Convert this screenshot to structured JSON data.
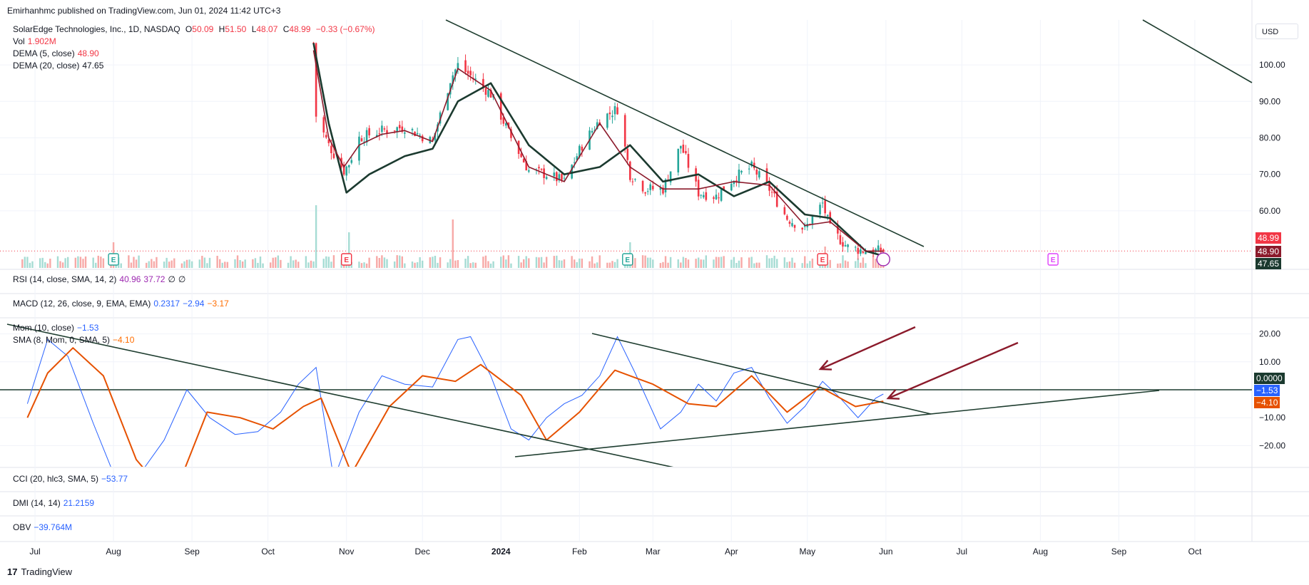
{
  "header": {
    "published": "Emirhanhmc published on TradingView.com, Jun 01, 2024 11:42 UTC+3",
    "symbol": "SolarEdge Technologies, Inc., 1D, NASDAQ",
    "ohlc": {
      "o_label": "O",
      "o": "50.09",
      "h_label": "H",
      "h": "51.50",
      "l_label": "L",
      "l": "48.07",
      "c_label": "C",
      "c": "48.99",
      "change": "−0.33 (−0.67%)"
    },
    "vol_label": "Vol",
    "vol_value": "1.902M",
    "dema5_label": "DEMA (5, close)",
    "dema5_value": "48.90",
    "dema20_label": "DEMA (20, close)",
    "dema20_value": "47.65"
  },
  "currency": "USD",
  "indicators": {
    "rsi_label": "RSI (14, close, SMA, 14, 2)",
    "rsi_v1": "40.96",
    "rsi_v2": "37.72",
    "rsi_v3": "∅",
    "rsi_v4": "∅",
    "macd_label": "MACD (12, 26, close, 9, EMA, EMA)",
    "macd_v1": "0.2317",
    "macd_v2": "−2.94",
    "macd_v3": "−3.17",
    "mom_label": "Mom (10, close)",
    "mom_value": "−1.53",
    "sma_label": "SMA (8, Mom, 0, SMA, 5)",
    "sma_value": "−4.10",
    "cci_label": "CCI (20, hlc3, SMA, 5)",
    "cci_value": "−53.77",
    "dmi_label": "DMI (14, 14)",
    "dmi_value": "21.2159",
    "obv_label": "OBV",
    "obv_value": "−39.764M"
  },
  "price_tags": {
    "close": "48.99",
    "dema5": "48.90",
    "dema20": "47.65"
  },
  "mom_tags": {
    "zero": "0.0000",
    "mom": "−1.53",
    "sma": "−4.10"
  },
  "footer": {
    "brand": "TradingView",
    "logo_mark": "17"
  },
  "earnings_markers": [
    {
      "date": "2023-08-01",
      "label": "E"
    },
    {
      "date": "2023-11-01",
      "label": "E"
    },
    {
      "date": "2024-02-20",
      "label": "E"
    },
    {
      "date": "2024-05-07",
      "label": "E"
    },
    {
      "date": "2024-08-06",
      "label": "E"
    }
  ],
  "colors": {
    "up": "#26a69a",
    "down": "#f23645",
    "dema": "#1b3a2f",
    "trend": "#1e3d2f",
    "mom": "#2962ff",
    "sma": "#e65100",
    "arrow": "#8b1a2b"
  },
  "chart_data": [
    {
      "type": "line",
      "title": "SolarEdge Technologies, Inc., 1D, NASDAQ",
      "x_axis_labels": [
        "Jul",
        "Aug",
        "Sep",
        "Oct",
        "Nov",
        "Dec",
        "2024",
        "Feb",
        "Mar",
        "Apr",
        "May",
        "Jun",
        "Jul",
        "Aug",
        "Sep",
        "Oct"
      ],
      "y_ticks": [
        60,
        70,
        80,
        90,
        100
      ],
      "ylim": [
        46,
        109
      ],
      "series": [
        {
          "name": "Close",
          "x": [
            "2023-10-19",
            "2023-10-20",
            "2023-10-25",
            "2023-10-31",
            "2023-11-02",
            "2023-11-06",
            "2023-11-15",
            "2023-11-24",
            "2023-12-05",
            "2023-12-12",
            "2023-12-15",
            "2023-12-20",
            "2023-12-28",
            "2024-01-05",
            "2024-01-12",
            "2024-01-19",
            "2024-01-26",
            "2024-02-02",
            "2024-02-09",
            "2024-02-16",
            "2024-02-21",
            "2024-02-27",
            "2024-03-05",
            "2024-03-12",
            "2024-03-19",
            "2024-03-26",
            "2024-04-02",
            "2024-04-09",
            "2024-04-16",
            "2024-04-23",
            "2024-04-30",
            "2024-05-07",
            "2024-05-10",
            "2024-05-17",
            "2024-05-24",
            "2024-05-31"
          ],
          "values": [
            106,
            86,
            78,
            71,
            73,
            80,
            82,
            83,
            79,
            96,
            100,
            97,
            92,
            80,
            71,
            70,
            68,
            78,
            85,
            88,
            70,
            66,
            66,
            78,
            65,
            64,
            69,
            72,
            66,
            58,
            55,
            62,
            55,
            50,
            49,
            48.99
          ]
        },
        {
          "name": "DEMA (5, close)",
          "x": [
            "2023-10-19",
            "2023-10-25",
            "2023-10-31",
            "2023-11-06",
            "2023-11-15",
            "2023-11-24",
            "2023-12-05",
            "2023-12-15",
            "2023-12-28",
            "2024-01-12",
            "2024-01-26",
            "2024-02-09",
            "2024-02-21",
            "2024-03-05",
            "2024-03-19",
            "2024-04-02",
            "2024-04-16",
            "2024-04-30",
            "2024-05-10",
            "2024-05-24",
            "2024-05-31"
          ],
          "values": [
            104,
            80,
            72,
            78,
            81,
            82,
            79,
            99,
            93,
            72,
            68,
            84,
            72,
            66,
            66,
            68,
            67,
            56,
            57,
            49,
            48.9
          ]
        },
        {
          "name": "DEMA (20, close)",
          "x": [
            "2023-10-19",
            "2023-10-25",
            "2023-11-01",
            "2023-11-10",
            "2023-11-24",
            "2023-12-05",
            "2023-12-15",
            "2023-12-28",
            "2024-01-12",
            "2024-01-26",
            "2024-02-09",
            "2024-02-21",
            "2024-03-05",
            "2024-03-19",
            "2024-04-02",
            "2024-04-16",
            "2024-04-30",
            "2024-05-10",
            "2024-05-24",
            "2024-05-31"
          ],
          "values": [
            106,
            84,
            65,
            70,
            75,
            77,
            90,
            95,
            78,
            70,
            72,
            78,
            68,
            70,
            64,
            68,
            59,
            58,
            49,
            47.65
          ]
        },
        {
          "name": "Vol",
          "values_hint": "volume bars"
        }
      ]
    },
    {
      "type": "line",
      "title": "Mom (10, close)",
      "y_ticks": [
        -20,
        -10,
        0,
        10,
        20
      ],
      "ylim": [
        -25,
        23
      ],
      "series": [
        {
          "name": "Mom (10, close)",
          "x": [
            "2023-06-28",
            "2023-07-06",
            "2023-07-14",
            "2023-07-24",
            "2023-08-01",
            "2023-08-10",
            "2023-08-21",
            "2023-08-30",
            "2023-09-08",
            "2023-09-18",
            "2023-09-27",
            "2023-10-06",
            "2023-10-13",
            "2023-10-20",
            "2023-10-27",
            "2023-11-06",
            "2023-11-15",
            "2023-11-24",
            "2023-12-05",
            "2023-12-15",
            "2023-12-20",
            "2023-12-28",
            "2024-01-05",
            "2024-01-12",
            "2024-01-19",
            "2024-01-26",
            "2024-02-02",
            "2024-02-09",
            "2024-02-16",
            "2024-02-23",
            "2024-03-04",
            "2024-03-12",
            "2024-03-19",
            "2024-03-26",
            "2024-04-02",
            "2024-04-09",
            "2024-04-16",
            "2024-04-23",
            "2024-04-30",
            "2024-05-07",
            "2024-05-14",
            "2024-05-21",
            "2024-05-28",
            "2024-05-31"
          ],
          "values": [
            -5,
            18,
            12,
            -12,
            -30,
            -32,
            -18,
            0,
            -10,
            -16,
            -15,
            -8,
            2,
            8,
            -32,
            -8,
            5,
            2,
            1,
            18,
            19,
            5,
            -14,
            -18,
            -10,
            -5,
            -2,
            5,
            19,
            6,
            -14,
            -8,
            2,
            -4,
            6,
            8,
            -3,
            -12,
            -6,
            3,
            -3,
            -10,
            -3,
            -1.53
          ]
        },
        {
          "name": "SMA (8, Mom, 0, SMA, 5)",
          "x": [
            "2023-06-28",
            "2023-07-06",
            "2023-07-16",
            "2023-07-28",
            "2023-08-10",
            "2023-08-24",
            "2023-09-07",
            "2023-09-20",
            "2023-10-03",
            "2023-10-15",
            "2023-10-22",
            "2023-11-03",
            "2023-11-18",
            "2023-12-01",
            "2023-12-14",
            "2023-12-24",
            "2024-01-09",
            "2024-01-19",
            "2024-02-01",
            "2024-02-15",
            "2024-03-01",
            "2024-03-15",
            "2024-03-26",
            "2024-04-09",
            "2024-04-23",
            "2024-05-06",
            "2024-05-20",
            "2024-05-31"
          ],
          "values": [
            -10,
            6,
            15,
            5,
            -25,
            -40,
            -8,
            -10,
            -14,
            -6,
            -3,
            -30,
            -6,
            5,
            3,
            9,
            -2,
            -18,
            -8,
            7,
            2,
            -5,
            -6,
            5,
            -8,
            1,
            -6,
            -4.1
          ]
        }
      ]
    }
  ]
}
